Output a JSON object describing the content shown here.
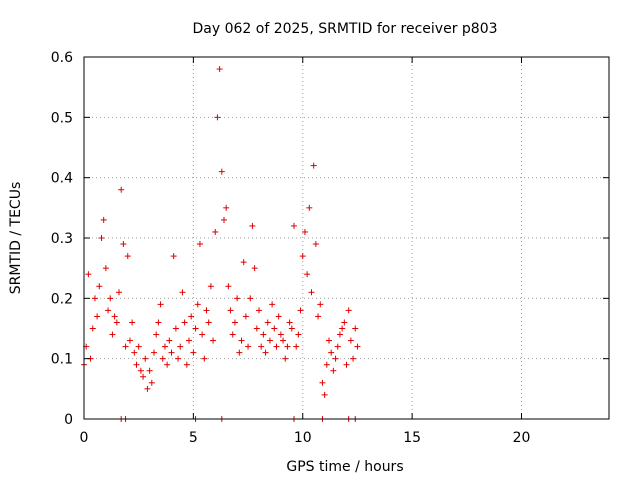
{
  "chart_data": {
    "type": "scatter",
    "title": "Day 062 of 2025, SRMTID for receiver p803",
    "xlabel": "GPS time / hours",
    "ylabel": "SRMTID / TECUs",
    "xlim": [
      0,
      24
    ],
    "ylim": [
      0,
      0.6
    ],
    "xticks": [
      0,
      5,
      10,
      15,
      20
    ],
    "yticks": [
      0,
      0.1,
      0.2,
      0.3,
      0.4,
      0.5,
      0.6
    ],
    "xtick_labels": [
      "0",
      "5",
      "10",
      "15",
      "20"
    ],
    "ytick_labels": [
      "0",
      "0.1",
      "0.2",
      "0.3",
      "0.4",
      "0.5",
      "0.6"
    ],
    "grid": true,
    "marker": "+",
    "marker_color": "#e00000",
    "series": [
      {
        "name": "SRMTID",
        "x": [
          0.0,
          0.1,
          0.2,
          0.3,
          0.4,
          0.5,
          0.6,
          0.7,
          0.8,
          0.9,
          1.0,
          1.1,
          1.2,
          1.3,
          1.4,
          1.5,
          1.6,
          1.7,
          1.8,
          1.9,
          2.0,
          2.1,
          2.2,
          2.3,
          2.4,
          2.5,
          2.6,
          2.7,
          2.8,
          2.9,
          3.0,
          3.1,
          3.2,
          3.3,
          3.4,
          3.5,
          3.6,
          3.7,
          3.8,
          3.9,
          4.0,
          4.1,
          4.2,
          4.3,
          4.4,
          4.5,
          4.6,
          4.7,
          4.8,
          4.9,
          5.0,
          5.1,
          5.2,
          5.3,
          5.4,
          5.5,
          5.6,
          5.7,
          5.8,
          5.9,
          6.0,
          6.1,
          6.2,
          6.3,
          6.4,
          6.5,
          6.6,
          6.7,
          6.8,
          6.9,
          7.0,
          7.1,
          7.2,
          7.3,
          7.4,
          7.5,
          7.6,
          7.7,
          7.8,
          7.9,
          8.0,
          8.1,
          8.2,
          8.3,
          8.4,
          8.5,
          8.6,
          8.7,
          8.8,
          8.9,
          9.0,
          9.1,
          9.2,
          9.3,
          9.4,
          9.5,
          9.6,
          9.7,
          9.8,
          9.9,
          10.0,
          10.1,
          10.2,
          10.3,
          10.4,
          10.5,
          10.6,
          10.7,
          10.8,
          10.9,
          11.0,
          11.1,
          11.2,
          11.3,
          11.4,
          11.5,
          11.6,
          11.7,
          11.8,
          11.9,
          12.0,
          12.1,
          12.2,
          12.3,
          12.4,
          12.5,
          1.7,
          1.9,
          5.1,
          6.3,
          9.6,
          10.9,
          12.1,
          12.4
        ],
        "y": [
          0.09,
          0.12,
          0.24,
          0.1,
          0.15,
          0.2,
          0.17,
          0.22,
          0.3,
          0.33,
          0.25,
          0.18,
          0.2,
          0.14,
          0.17,
          0.16,
          0.21,
          0.38,
          0.29,
          0.12,
          0.27,
          0.13,
          0.16,
          0.11,
          0.09,
          0.12,
          0.08,
          0.07,
          0.1,
          0.05,
          0.08,
          0.06,
          0.11,
          0.14,
          0.16,
          0.19,
          0.1,
          0.12,
          0.09,
          0.13,
          0.11,
          0.27,
          0.15,
          0.1,
          0.12,
          0.21,
          0.16,
          0.09,
          0.13,
          0.17,
          0.11,
          0.15,
          0.19,
          0.29,
          0.14,
          0.1,
          0.18,
          0.16,
          0.22,
          0.13,
          0.31,
          0.5,
          0.58,
          0.41,
          0.33,
          0.35,
          0.22,
          0.18,
          0.14,
          0.16,
          0.2,
          0.11,
          0.13,
          0.26,
          0.17,
          0.12,
          0.2,
          0.32,
          0.25,
          0.15,
          0.18,
          0.12,
          0.14,
          0.11,
          0.16,
          0.13,
          0.19,
          0.15,
          0.12,
          0.17,
          0.14,
          0.13,
          0.1,
          0.12,
          0.16,
          0.15,
          0.32,
          0.12,
          0.14,
          0.18,
          0.27,
          0.31,
          0.24,
          0.35,
          0.21,
          0.42,
          0.29,
          0.17,
          0.19,
          0.06,
          0.04,
          0.09,
          0.13,
          0.11,
          0.08,
          0.1,
          0.12,
          0.14,
          0.15,
          0.16,
          0.09,
          0.18,
          0.13,
          0.1,
          0.15,
          0.12,
          0.0,
          0.0,
          0.0,
          0.0,
          0.0,
          0.0,
          0.0,
          0.0
        ]
      }
    ]
  }
}
